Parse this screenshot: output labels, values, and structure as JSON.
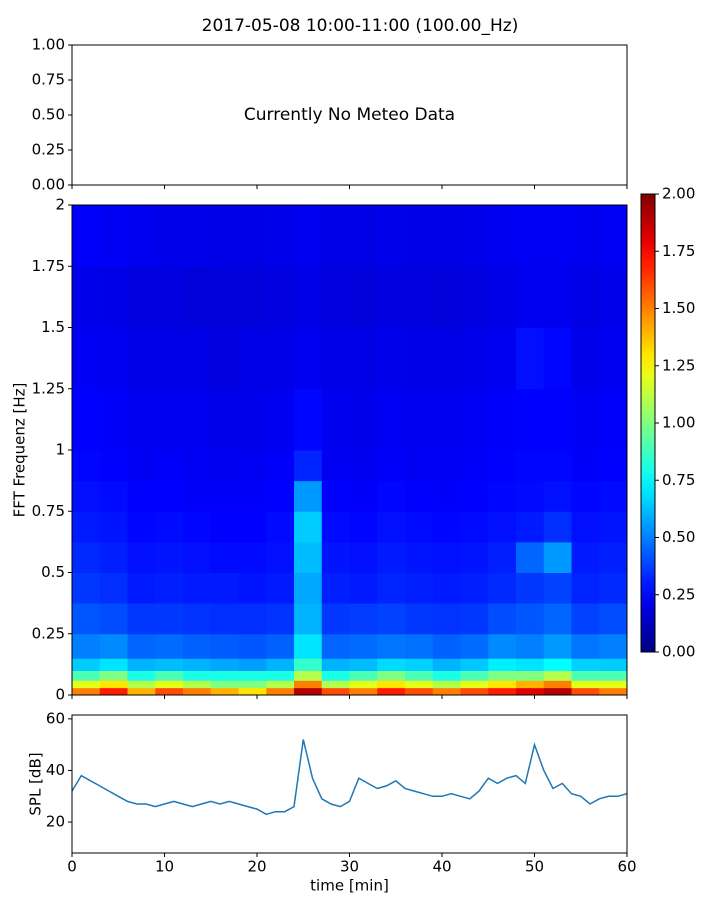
{
  "chart_data": [
    {
      "type": "text",
      "title": "2017-05-08 10:00-11:00 (100.00_Hz)",
      "annotation": "Currently No Meteo Data",
      "ylim": [
        0,
        1
      ],
      "yticks": [
        {
          "value": 0,
          "label": "0.00"
        },
        {
          "value": 0.25,
          "label": "0.25"
        },
        {
          "value": 0.5,
          "label": "0.50"
        },
        {
          "value": 0.75,
          "label": "0.75"
        },
        {
          "value": 1,
          "label": "1.00"
        }
      ]
    },
    {
      "type": "heatmap",
      "ylabel": "FFT Frequenz [Hz]",
      "x": [
        0,
        3,
        6,
        9,
        12,
        15,
        18,
        21,
        24,
        27,
        30,
        33,
        36,
        39,
        42,
        45,
        48,
        51,
        54,
        57,
        60
      ],
      "y": [
        0,
        0.03,
        0.06,
        0.1,
        0.15,
        0.25,
        0.375,
        0.5,
        0.625,
        0.75,
        0.875,
        1,
        1.25,
        1.5,
        1.75,
        2
      ],
      "z": [
        [
          1.5,
          1.7,
          1.4,
          1.6,
          1.5,
          1.4,
          1.3,
          1.5,
          1.9,
          1.6,
          1.5,
          1.7,
          1.6,
          1.5,
          1.6,
          1.7,
          1.8,
          1.9,
          1.6,
          1.5
        ],
        [
          1.2,
          1.3,
          1.1,
          1.2,
          1.1,
          1.0,
          1.0,
          1.1,
          1.5,
          1.1,
          1.2,
          1.3,
          1.2,
          1.1,
          1.2,
          1.3,
          1.4,
          1.5,
          1.2,
          1.2
        ],
        [
          0.9,
          1.0,
          0.8,
          0.9,
          0.8,
          0.8,
          0.8,
          0.8,
          1.1,
          0.8,
          0.9,
          1.0,
          0.9,
          0.8,
          0.9,
          1.0,
          1.0,
          1.1,
          0.9,
          0.9
        ],
        [
          0.65,
          0.7,
          0.6,
          0.62,
          0.6,
          0.58,
          0.56,
          0.6,
          0.85,
          0.6,
          0.62,
          0.68,
          0.66,
          0.6,
          0.64,
          0.72,
          0.7,
          0.75,
          0.66,
          0.65
        ],
        [
          0.5,
          0.52,
          0.45,
          0.46,
          0.44,
          0.43,
          0.42,
          0.44,
          0.7,
          0.45,
          0.46,
          0.48,
          0.47,
          0.44,
          0.46,
          0.52,
          0.5,
          0.55,
          0.48,
          0.5
        ],
        [
          0.42,
          0.4,
          0.36,
          0.36,
          0.35,
          0.34,
          0.34,
          0.35,
          0.6,
          0.36,
          0.37,
          0.38,
          0.36,
          0.35,
          0.36,
          0.4,
          0.42,
          0.45,
          0.38,
          0.4
        ],
        [
          0.36,
          0.34,
          0.3,
          0.31,
          0.3,
          0.3,
          0.29,
          0.3,
          0.58,
          0.31,
          0.3,
          0.32,
          0.31,
          0.3,
          0.31,
          0.33,
          0.36,
          0.38,
          0.32,
          0.33
        ],
        [
          0.33,
          0.31,
          0.28,
          0.29,
          0.28,
          0.27,
          0.27,
          0.28,
          0.62,
          0.29,
          0.28,
          0.3,
          0.29,
          0.28,
          0.29,
          0.31,
          0.45,
          0.55,
          0.3,
          0.31
        ],
        [
          0.3,
          0.29,
          0.26,
          0.27,
          0.26,
          0.25,
          0.25,
          0.27,
          0.65,
          0.27,
          0.26,
          0.28,
          0.27,
          0.26,
          0.27,
          0.28,
          0.3,
          0.34,
          0.28,
          0.29
        ],
        [
          0.28,
          0.27,
          0.25,
          0.25,
          0.24,
          0.24,
          0.24,
          0.25,
          0.55,
          0.25,
          0.24,
          0.26,
          0.25,
          0.24,
          0.25,
          0.26,
          0.27,
          0.28,
          0.26,
          0.27
        ],
        [
          0.26,
          0.25,
          0.23,
          0.24,
          0.23,
          0.22,
          0.23,
          0.24,
          0.32,
          0.23,
          0.22,
          0.24,
          0.23,
          0.23,
          0.24,
          0.25,
          0.26,
          0.26,
          0.24,
          0.25
        ],
        [
          0.25,
          0.24,
          0.22,
          0.22,
          0.22,
          0.21,
          0.21,
          0.22,
          0.26,
          0.22,
          0.21,
          0.23,
          0.22,
          0.22,
          0.23,
          0.24,
          0.25,
          0.25,
          0.23,
          0.24
        ],
        [
          0.23,
          0.22,
          0.2,
          0.2,
          0.2,
          0.19,
          0.2,
          0.2,
          0.22,
          0.2,
          0.2,
          0.21,
          0.2,
          0.2,
          0.21,
          0.22,
          0.28,
          0.26,
          0.21,
          0.22
        ],
        [
          0.21,
          0.2,
          0.19,
          0.19,
          0.18,
          0.18,
          0.18,
          0.19,
          0.2,
          0.19,
          0.18,
          0.19,
          0.19,
          0.18,
          0.19,
          0.2,
          0.22,
          0.22,
          0.2,
          0.21
        ],
        [
          0.24,
          0.23,
          0.22,
          0.21,
          0.21,
          0.2,
          0.2,
          0.21,
          0.22,
          0.2,
          0.2,
          0.21,
          0.2,
          0.2,
          0.21,
          0.22,
          0.23,
          0.23,
          0.22,
          0.23
        ]
      ],
      "colormap": "jet",
      "ylim": [
        0,
        2
      ],
      "yticks": [
        0,
        0.25,
        0.5,
        0.75,
        1,
        1.25,
        1.5,
        1.75,
        2
      ],
      "zlim": [
        0,
        2
      ],
      "zticks": [
        {
          "value": 0,
          "label": "0.00"
        },
        {
          "value": 0.25,
          "label": "0.25"
        },
        {
          "value": 0.5,
          "label": "0.50"
        },
        {
          "value": 0.75,
          "label": "0.75"
        },
        {
          "value": 1,
          "label": "1.00"
        },
        {
          "value": 1.25,
          "label": "1.25"
        },
        {
          "value": 1.5,
          "label": "1.50"
        },
        {
          "value": 1.75,
          "label": "1.75"
        },
        {
          "value": 2,
          "label": "2.00"
        }
      ]
    },
    {
      "type": "line",
      "xlabel": "time [min]",
      "ylabel": "SPL [dB]",
      "color": "#1f77b4",
      "x": [
        0,
        1,
        2,
        3,
        4,
        5,
        6,
        7,
        8,
        9,
        10,
        11,
        12,
        13,
        14,
        15,
        16,
        17,
        18,
        19,
        20,
        21,
        22,
        23,
        24,
        25,
        26,
        27,
        28,
        29,
        30,
        31,
        32,
        33,
        34,
        35,
        36,
        37,
        38,
        39,
        40,
        41,
        42,
        43,
        44,
        45,
        46,
        47,
        48,
        49,
        50,
        51,
        52,
        53,
        54,
        55,
        56,
        57,
        58,
        59,
        60
      ],
      "values": [
        32,
        38,
        36,
        34,
        32,
        30,
        28,
        27,
        27,
        26,
        27,
        28,
        27,
        26,
        27,
        28,
        27,
        28,
        27,
        26,
        25,
        23,
        24,
        24,
        26,
        52,
        37,
        29,
        27,
        26,
        28,
        37,
        35,
        33,
        34,
        36,
        33,
        32,
        31,
        30,
        30,
        31,
        30,
        29,
        32,
        37,
        35,
        37,
        38,
        35,
        50,
        40,
        33,
        35,
        31,
        30,
        27,
        29,
        30,
        30,
        31
      ],
      "xlim": [
        0,
        60
      ],
      "xticks": [
        0,
        10,
        20,
        30,
        40,
        50,
        60
      ],
      "ylim": [
        8,
        61.5
      ],
      "yticks": [
        20,
        40,
        60
      ]
    }
  ]
}
